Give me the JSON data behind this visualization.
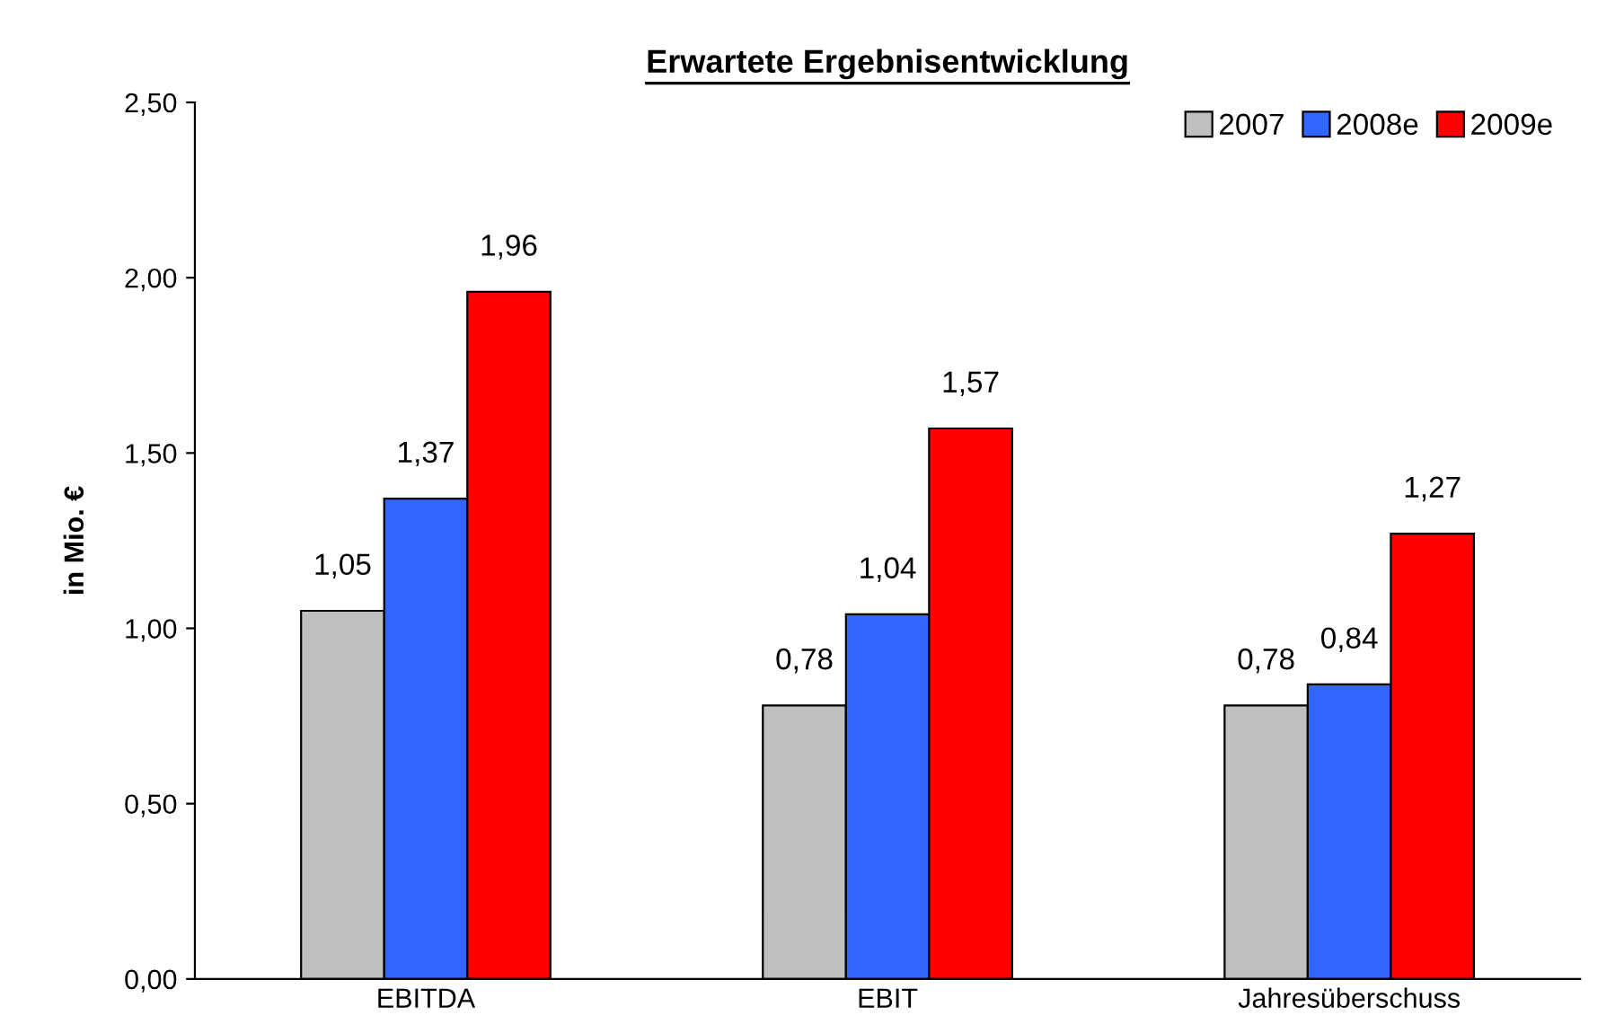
{
  "chart_data": {
    "type": "bar",
    "title": "Erwartete Ergebnisentwicklung",
    "ylabel": "in Mio. €",
    "categories": [
      "EBITDA",
      "EBIT",
      "Jahresüberschuss"
    ],
    "series": [
      {
        "name": "2007",
        "color": "#c0c0c0",
        "values": [
          1.05,
          0.78,
          0.78
        ],
        "value_labels": [
          "1,05",
          "0,78",
          "0,78"
        ]
      },
      {
        "name": "2008e",
        "color": "#3366ff",
        "values": [
          1.37,
          1.04,
          0.84
        ],
        "value_labels": [
          "1,37",
          "1,04",
          "0,84"
        ]
      },
      {
        "name": "2009e",
        "color": "#ff0000",
        "values": [
          1.96,
          1.57,
          1.27
        ],
        "value_labels": [
          "1,96",
          "1,57",
          "1,27"
        ]
      }
    ],
    "ylim": [
      0,
      2.5
    ],
    "yticks": [
      {
        "value": 0,
        "label": "0,00"
      },
      {
        "value": 0.5,
        "label": "0,50"
      },
      {
        "value": 1,
        "label": "1,00"
      },
      {
        "value": 1.5,
        "label": "1,50"
      },
      {
        "value": 2,
        "label": "2,00"
      },
      {
        "value": 2.5,
        "label": "2,50"
      }
    ],
    "grid": false,
    "legend": "top right"
  }
}
